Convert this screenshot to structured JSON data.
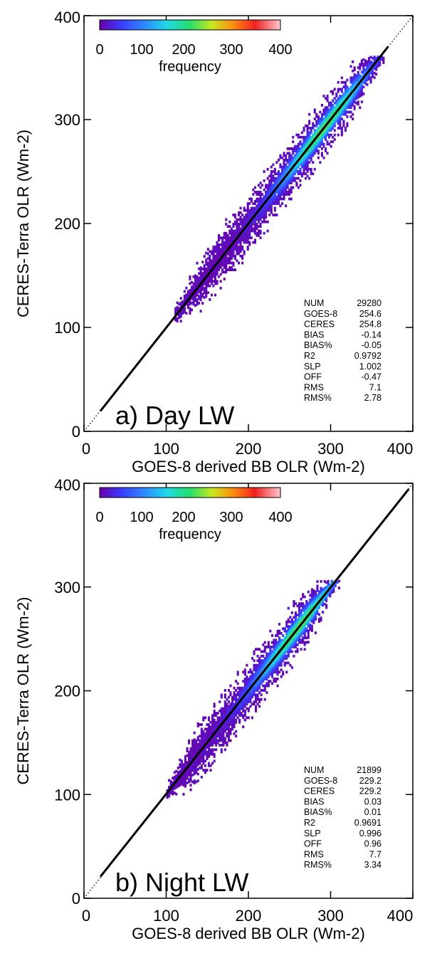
{
  "chart_data": [
    {
      "type": "heatmap",
      "panel_label": "a) Day LW",
      "xlabel": "GOES-8 derived BB OLR (Wm-2)",
      "ylabel": "CERES-Terra OLR (Wm-2)",
      "xlim": [
        0,
        400
      ],
      "ylim": [
        0,
        400
      ],
      "xticks": [
        "0",
        "100",
        "200",
        "300",
        "400"
      ],
      "yticks": [
        "0",
        "100",
        "200",
        "300",
        "400"
      ],
      "colorbar": {
        "label": "frequency",
        "range": [
          0,
          400
        ],
        "ticks": [
          "0",
          "100",
          "200",
          "300",
          "400"
        ]
      },
      "one_to_one_line": true,
      "fit_line": {
        "slope": 1.002,
        "offset": -0.47
      },
      "density": {
        "x_range": [
          110,
          365
        ],
        "y_range": [
          105,
          360
        ],
        "center_slope": 1.0,
        "center_offset": 0.5,
        "spread": 22,
        "peak_x": 290,
        "peak_frequency": 400
      },
      "stats": [
        {
          "name": "NUM",
          "value": "29280"
        },
        {
          "name": "GOES-8",
          "value": "254.6"
        },
        {
          "name": "CERES",
          "value": "254.8"
        },
        {
          "name": "BIAS",
          "value": "-0.14"
        },
        {
          "name": "BIAS%",
          "value": "-0.05"
        },
        {
          "name": "R2",
          "value": "0.9792"
        },
        {
          "name": "SLP",
          "value": "1.002"
        },
        {
          "name": "OFF",
          "value": "-0.47"
        },
        {
          "name": "RMS",
          "value": "7.1"
        },
        {
          "name": "RMS%",
          "value": "2.78"
        }
      ]
    },
    {
      "type": "heatmap",
      "panel_label": "b) Night LW",
      "xlabel": "GOES-8 derived BB OLR (Wm-2)",
      "ylabel": "CERES-Terra OLR (Wm-2)",
      "xlim": [
        0,
        400
      ],
      "ylim": [
        0,
        400
      ],
      "xticks": [
        "0",
        "100",
        "200",
        "300",
        "400"
      ],
      "yticks": [
        "0",
        "100",
        "200",
        "300",
        "400"
      ],
      "colorbar": {
        "label": "frequency",
        "range": [
          0,
          400
        ],
        "ticks": [
          "0",
          "100",
          "200",
          "300",
          "400"
        ]
      },
      "one_to_one_line": true,
      "fit_line": {
        "slope": 0.996,
        "offset": 0.96
      },
      "density": {
        "x_range": [
          100,
          310
        ],
        "y_range": [
          88,
          305
        ],
        "center_slope": 1.0,
        "center_offset": 0.5,
        "spread": 22,
        "peak_x": 260,
        "peak_frequency": 400
      },
      "stats": [
        {
          "name": "NUM",
          "value": "21899"
        },
        {
          "name": "GOES-8",
          "value": "229.2"
        },
        {
          "name": "CERES",
          "value": "229.2"
        },
        {
          "name": "BIAS",
          "value": "0.03"
        },
        {
          "name": "BIAS%",
          "value": "0.01"
        },
        {
          "name": "R2",
          "value": "0.9691"
        },
        {
          "name": "SLP",
          "value": "0.996"
        },
        {
          "name": "OFF",
          "value": "0.96"
        },
        {
          "name": "RMS",
          "value": "7.7"
        },
        {
          "name": "RMS%",
          "value": "3.34"
        }
      ]
    }
  ]
}
